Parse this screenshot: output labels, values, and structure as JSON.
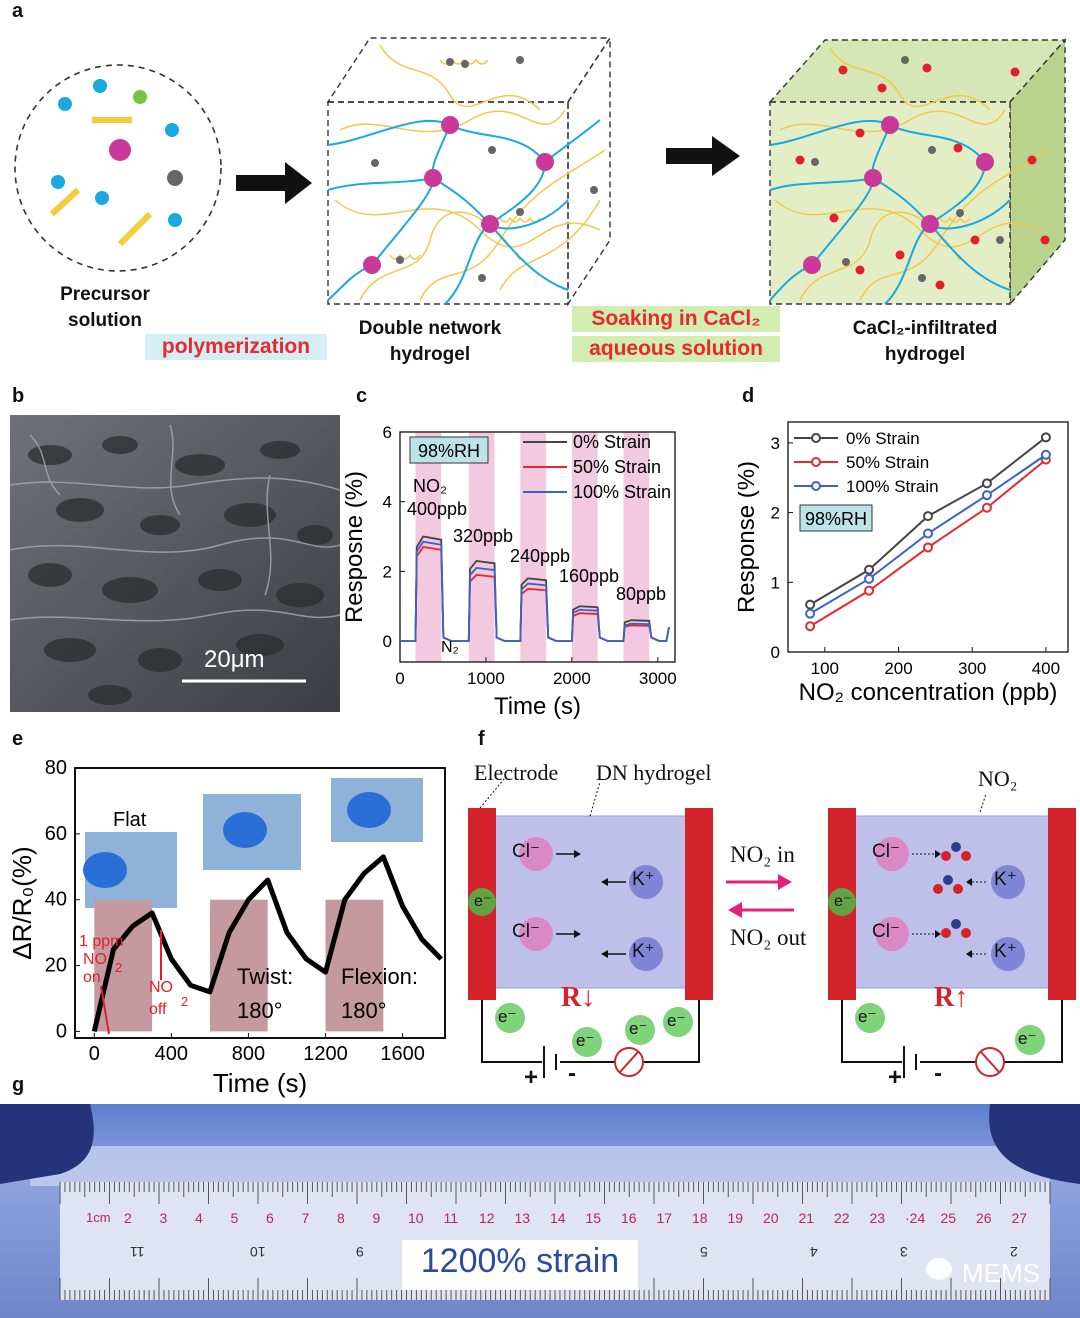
{
  "panels": {
    "a": "a",
    "b": "b",
    "c": "c",
    "d": "d",
    "e": "e",
    "f": "f",
    "g": "g"
  },
  "panel_a": {
    "precursor_label": "Precursor\nsolution",
    "polymerization": "polymerization",
    "dn_label": "Double network\nhydrogel",
    "soaking_line1": "Soaking in CaCl₂",
    "soaking_line2": "aqueous solution",
    "cacl2_label": "CaCl₂-infiltrated\nhydrogel"
  },
  "panel_b": {
    "scalebar": "20μm"
  },
  "panel_c": {
    "badge": "98%RH",
    "gas": "NO₂",
    "n2": "N₂",
    "conc_labels": [
      "400ppb",
      "320ppb",
      "240ppb",
      "160ppb",
      "80ppb"
    ],
    "legend": [
      "0% Strain",
      "50% Strain",
      "100% Strain"
    ]
  },
  "panel_d": {
    "badge": "98%RH",
    "legend": [
      "0% Strain",
      "50% Strain",
      "100% Strain"
    ]
  },
  "panel_e": {
    "flat": "Flat",
    "on1": "1 ppm",
    "on2": "NO",
    "on3": "on",
    "on_sub": "2",
    "off1": "NO",
    "off2": "off",
    "off_sub": "2",
    "twist": "Twist:",
    "twist_deg": "180°",
    "flexion": "Flexion:",
    "flexion_deg": "180°"
  },
  "panel_f": {
    "electrode": "Electrode",
    "dn_hydrogel": "DN hydrogel",
    "no2": "NO₂",
    "no2_in": "NO₂ in",
    "no2_out": "NO₂ out",
    "cl": "Cl⁻",
    "k": "K⁺",
    "e": "e⁻",
    "r_down": "R↓",
    "r_up": "R↑",
    "plus": "+",
    "minus": "-"
  },
  "panel_g": {
    "strain": "1200% strain",
    "watermark": "MEMS",
    "ruler_cm": "1cm",
    "ruler_top": [
      "2",
      "3",
      "4",
      "5",
      "6",
      "7",
      "8",
      "9",
      "10",
      "11",
      "12",
      "13",
      "14",
      "15",
      "16",
      "17",
      "18",
      "19",
      "20",
      "21",
      "22",
      "23",
      "·24",
      "25",
      "26",
      "27"
    ],
    "ruler_bottom": [
      "11",
      "10",
      "9",
      "5",
      "4",
      "3",
      "2"
    ]
  },
  "chart_data": [
    {
      "panel": "c",
      "type": "line",
      "xlabel": "Time (s)",
      "ylabel": "Resposne (%)",
      "xlim": [
        0,
        3200
      ],
      "ylim": [
        -0.6,
        6
      ],
      "xticks": [
        0,
        1000,
        2000,
        3000
      ],
      "yticks": [
        0,
        2,
        4,
        6
      ],
      "shaded_intervals": [
        [
          180,
          480
        ],
        [
          800,
          1100
        ],
        [
          1400,
          1700
        ],
        [
          2000,
          2300
        ],
        [
          2600,
          2900
        ]
      ],
      "series": [
        {
          "name": "0% Strain",
          "color": "#444444",
          "peaks": [
            3.0,
            2.3,
            1.8,
            1.0,
            0.6
          ]
        },
        {
          "name": "50% Strain",
          "color": "#e8282e",
          "peaks": [
            2.7,
            1.9,
            1.5,
            0.8,
            0.45
          ]
        },
        {
          "name": "100% Strain",
          "color": "#3a63c7",
          "peaks": [
            2.85,
            2.1,
            1.65,
            0.9,
            0.5
          ]
        }
      ]
    },
    {
      "panel": "d",
      "type": "line",
      "xlabel": "NO₂ concentration (ppb)",
      "ylabel": "Response (%)",
      "xlim": [
        50,
        430
      ],
      "ylim": [
        0,
        3.3
      ],
      "xticks": [
        100,
        200,
        300,
        400
      ],
      "yticks": [
        0,
        1,
        2,
        3
      ],
      "x": [
        80,
        160,
        240,
        320,
        400
      ],
      "series": [
        {
          "name": "0% Strain",
          "color": "#444444",
          "values": [
            0.68,
            1.18,
            1.95,
            2.42,
            3.08
          ]
        },
        {
          "name": "50% Strain",
          "color": "#e8282e",
          "values": [
            0.37,
            0.88,
            1.5,
            2.07,
            2.76
          ]
        },
        {
          "name": "100% Strain",
          "color": "#3a63c7",
          "values": [
            0.55,
            1.05,
            1.7,
            2.25,
            2.83
          ]
        }
      ]
    },
    {
      "panel": "e",
      "type": "line",
      "xlabel": "Time (s)",
      "ylabel": "ΔR/R₀(%)",
      "xlim": [
        -100,
        1820
      ],
      "ylim": [
        -2,
        80
      ],
      "xticks": [
        0,
        400,
        800,
        1200,
        1600
      ],
      "yticks": [
        0,
        20,
        40,
        60,
        80
      ],
      "shaded_intervals": [
        [
          0,
          300
        ],
        [
          600,
          900
        ],
        [
          1200,
          1500
        ]
      ],
      "series": [
        {
          "name": "response",
          "color": "#000000",
          "x": [
            0,
            100,
            200,
            300,
            400,
            500,
            600,
            700,
            800,
            900,
            1000,
            1100,
            1200,
            1300,
            1400,
            1500,
            1600,
            1700,
            1800
          ],
          "values": [
            0,
            25,
            32,
            36,
            22,
            14,
            12,
            30,
            40,
            46,
            30,
            22,
            18,
            40,
            48,
            53,
            38,
            28,
            22
          ]
        }
      ]
    }
  ]
}
